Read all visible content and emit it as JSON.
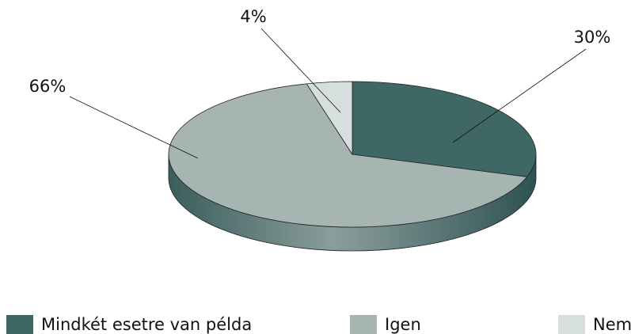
{
  "chart_data": {
    "type": "pie",
    "categories": [
      "Mindkét esetre van példa",
      "Igen",
      "Nem"
    ],
    "values": [
      30,
      66,
      4
    ],
    "value_labels": [
      "30%",
      "66%",
      "4%"
    ],
    "colors": [
      "#3f6766",
      "#a6b5b2",
      "#d7dfde"
    ],
    "legend": "bottom"
  }
}
